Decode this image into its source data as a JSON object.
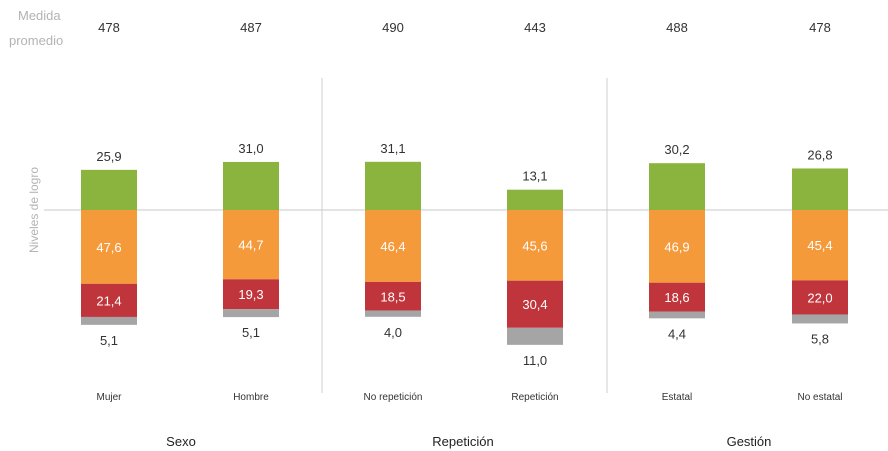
{
  "chart_data": {
    "type": "bar",
    "stacked": "diverging",
    "avg_label_line1": "Medida",
    "avg_label_line2": "promedio",
    "ylabel": "Niveles de logro",
    "categories": [
      "Mujer",
      "Hombre",
      "No repetición",
      "Repetición",
      "Estatal",
      "No estatal"
    ],
    "groups": [
      {
        "name": "Sexo",
        "categories": [
          "Mujer",
          "Hombre"
        ]
      },
      {
        "name": "Repetición",
        "categories": [
          "No repetición",
          "Repetición"
        ]
      },
      {
        "name": "Gestión",
        "categories": [
          "Estatal",
          "No estatal"
        ]
      }
    ],
    "averages": [
      "478",
      "487",
      "490",
      "443",
      "488",
      "478"
    ],
    "series": [
      {
        "color": "#8bb43f",
        "direction": "up",
        "values": [
          25.9,
          31.0,
          31.1,
          13.1,
          30.2,
          26.8
        ],
        "labels": [
          "25,9",
          "31,0",
          "31,1",
          "13,1",
          "30,2",
          "26,8"
        ]
      },
      {
        "color": "#f59a3b",
        "direction": "down",
        "values": [
          47.6,
          44.7,
          46.4,
          45.6,
          46.9,
          45.4
        ],
        "labels": [
          "47,6",
          "44,7",
          "46,4",
          "45,6",
          "46,9",
          "45,4"
        ]
      },
      {
        "color": "#c0353b",
        "direction": "down",
        "values": [
          21.4,
          19.3,
          18.5,
          30.4,
          18.6,
          22.0
        ],
        "labels": [
          "21,4",
          "19,3",
          "18,5",
          "30,4",
          "18,6",
          "22,0"
        ]
      },
      {
        "color": "#a5a5a5",
        "direction": "down",
        "values": [
          5.1,
          5.1,
          4.0,
          11.0,
          4.4,
          5.8
        ],
        "labels": [
          "5,1",
          "5,1",
          "4,0",
          "11,0",
          "4,4",
          "5,8"
        ]
      }
    ],
    "colors": {
      "baseline": "#c8c8c8",
      "separator": "#cfcfcf"
    }
  }
}
